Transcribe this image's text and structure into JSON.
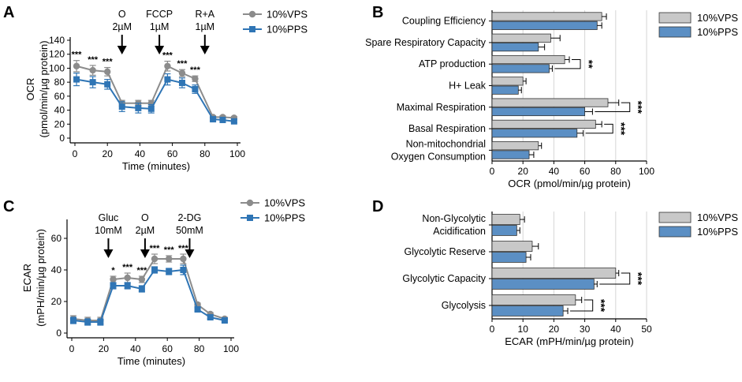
{
  "chart_data": [
    {
      "panel": "A",
      "type": "line",
      "xlabel": "Time (minutes)",
      "ylabel": [
        "OCR",
        "(pmol/min/µg protein)"
      ],
      "xlim": [
        0,
        100
      ],
      "ylim": [
        0,
        140
      ],
      "xticks": [
        0,
        20,
        40,
        60,
        80,
        100
      ],
      "yticks": [
        0,
        20,
        40,
        60,
        80,
        100,
        120,
        140
      ],
      "x": [
        1,
        11,
        20,
        29,
        39,
        47,
        57,
        66,
        74,
        85,
        91,
        98
      ],
      "series": [
        {
          "name": "10%VPS",
          "color": "#8c8c8c",
          "marker": "circle",
          "values": [
            103,
            97,
            95,
            50,
            50,
            50,
            103,
            93,
            85,
            30,
            30,
            29
          ],
          "errors": [
            8,
            7,
            6,
            4,
            4,
            4,
            7,
            5,
            4,
            2,
            2,
            2
          ]
        },
        {
          "name": "10%PPS",
          "color": "#2f75b5",
          "marker": "square",
          "values": [
            84,
            80,
            77,
            45,
            43,
            42,
            84,
            79,
            70,
            27,
            26,
            24
          ],
          "errors": [
            9,
            8,
            7,
            7,
            7,
            6,
            8,
            7,
            6,
            2,
            2,
            2
          ]
        }
      ],
      "significance": [
        {
          "x": 1,
          "label": "***"
        },
        {
          "x": 11,
          "label": "***"
        },
        {
          "x": 20,
          "label": "***"
        },
        {
          "x": 57,
          "label": "***"
        },
        {
          "x": 66,
          "label": "***"
        },
        {
          "x": 74,
          "label": "***"
        }
      ],
      "injections": [
        {
          "x": 29,
          "lines": [
            "O",
            "2µM"
          ]
        },
        {
          "x": 52,
          "lines": [
            "FCCP",
            "1µM"
          ]
        },
        {
          "x": 80,
          "lines": [
            "R+A",
            "1µM"
          ]
        }
      ],
      "legend": [
        "10%VPS",
        "10%PPS"
      ]
    },
    {
      "panel": "B",
      "type": "bar",
      "orientation": "horizontal",
      "xlabel": "OCR (pmol/min/µg protein)",
      "xlim": [
        0,
        100
      ],
      "xticks": [
        0,
        20,
        40,
        60,
        80,
        100
      ],
      "categories": [
        [
          "Coupling Efficiency"
        ],
        [
          "Spare Respiratory Capacity"
        ],
        [
          "ATP production"
        ],
        [
          "H+ Leak"
        ],
        [
          "Maximal Respiration"
        ],
        [
          "Basal Respiration"
        ],
        [
          "Non-mitochondrial",
          "Oxygen Consumption"
        ]
      ],
      "series": [
        {
          "name": "10%VPS",
          "color": "#c8c8c8",
          "values": [
            71,
            38,
            47,
            20,
            75,
            67,
            30
          ],
          "errors": [
            3,
            6,
            3,
            2,
            7,
            4,
            2
          ]
        },
        {
          "name": "10%PPS",
          "color": "#5b8fc4",
          "values": [
            68,
            30,
            37,
            17,
            60,
            55,
            24
          ],
          "errors": [
            3,
            4,
            2,
            2,
            5,
            4,
            3
          ]
        }
      ],
      "significance": [
        {
          "category": "ATP production",
          "label": "**"
        },
        {
          "category": "Maximal Respiration",
          "label": "***"
        },
        {
          "category": "Basal Respiration",
          "label": "***"
        }
      ],
      "legend": [
        "10%VPS",
        "10%PPS"
      ]
    },
    {
      "panel": "C",
      "type": "line",
      "xlabel": "Time (minutes)",
      "ylabel": [
        "ECAR",
        "(mPH/min/µg protein)"
      ],
      "xlim": [
        0,
        100
      ],
      "ylim": [
        0,
        70
      ],
      "xticks": [
        0,
        20,
        40,
        60,
        80,
        100
      ],
      "yticks": [
        0,
        20,
        40,
        60
      ],
      "x": [
        1,
        10,
        18,
        26,
        35,
        44,
        52,
        61,
        70,
        79,
        87,
        96
      ],
      "series": [
        {
          "name": "10%VPS",
          "color": "#8c8c8c",
          "marker": "circle",
          "values": [
            9,
            8,
            8,
            34,
            35,
            34,
            47,
            47,
            47,
            18,
            12,
            9
          ],
          "errors": [
            2,
            2,
            2,
            2,
            3,
            2,
            3,
            2,
            3,
            1,
            1,
            1
          ]
        },
        {
          "name": "10%PPS",
          "color": "#2f75b5",
          "marker": "square",
          "values": [
            8,
            7,
            7,
            30,
            30,
            28,
            40,
            39,
            40,
            15,
            10,
            8
          ],
          "errors": [
            2,
            2,
            2,
            2,
            2,
            2,
            2,
            2,
            3,
            1,
            1,
            1
          ]
        }
      ],
      "significance": [
        {
          "x": 26,
          "label": "*"
        },
        {
          "x": 35,
          "label": "***"
        },
        {
          "x": 44,
          "label": "***"
        },
        {
          "x": 52,
          "label": "***"
        },
        {
          "x": 61,
          "label": "***"
        },
        {
          "x": 70,
          "label": "***"
        }
      ],
      "injections": [
        {
          "x": 23,
          "lines": [
            "Gluc",
            "10mM"
          ]
        },
        {
          "x": 46,
          "lines": [
            "O",
            "2µM"
          ]
        },
        {
          "x": 74,
          "lines": [
            "2-DG",
            "50mM"
          ]
        }
      ],
      "legend": [
        "10%VPS",
        "10%PPS"
      ]
    },
    {
      "panel": "D",
      "type": "bar",
      "orientation": "horizontal",
      "xlabel": "ECAR (mPH/min/µg protein)",
      "xlim": [
        0,
        50
      ],
      "xticks": [
        0,
        10,
        20,
        30,
        40,
        50
      ],
      "categories": [
        [
          "Non-Glycolytic",
          "Acidification"
        ],
        [
          "Glycolytic Reserve"
        ],
        [
          "Glycolytic Capacity"
        ],
        [
          "Glycolysis"
        ]
      ],
      "series": [
        {
          "name": "10%VPS",
          "color": "#c8c8c8",
          "values": [
            9,
            13,
            40,
            27
          ],
          "errors": [
            1.5,
            2,
            1,
            2
          ]
        },
        {
          "name": "10%PPS",
          "color": "#5b8fc4",
          "values": [
            8,
            11,
            33,
            23
          ],
          "errors": [
            1,
            1.5,
            1,
            1.5
          ]
        }
      ],
      "significance": [
        {
          "category": "Glycolytic Capacity",
          "label": "***"
        },
        {
          "category": "Glycolysis",
          "label": "***"
        }
      ],
      "legend": [
        "10%VPS",
        "10%PPS"
      ]
    }
  ]
}
